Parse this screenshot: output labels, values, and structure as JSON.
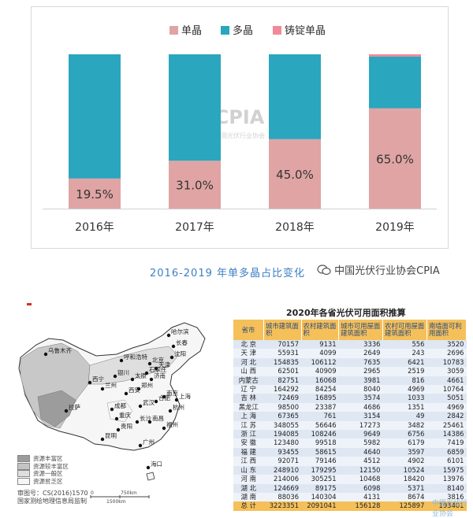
{
  "chart_data": {
    "type": "bar",
    "stacked": "percent",
    "categories": [
      "2016年",
      "2017年",
      "2018年",
      "2019年"
    ],
    "series": [
      {
        "name": "单晶",
        "color": "#e0a4a4",
        "values": [
          19.5,
          31.0,
          45.0,
          65.0
        ]
      },
      {
        "name": "多晶",
        "color": "#2aa6bf",
        "values": [
          80.5,
          69.0,
          55.0,
          33.5
        ]
      },
      {
        "name": "铸锭单晶",
        "color": "#f08a9a",
        "values": [
          0,
          0,
          0,
          1.5
        ]
      }
    ],
    "data_labels": [
      "19.5%",
      "31.0%",
      "45.0%",
      "65.0%"
    ],
    "ylim": [
      0,
      100
    ],
    "legend_position": "top",
    "grid": false,
    "watermark": {
      "brand": "CPIA",
      "subtitle": "中国光伏行业协会"
    }
  },
  "caption": "2016-2019 年单多晶占比变化",
  "org_label": "中国光伏行业协会CPIA",
  "map": {
    "cities": [
      {
        "name": "乌鲁木齐"
      },
      {
        "name": "哈尔滨"
      },
      {
        "name": "长春"
      },
      {
        "name": "沈阳"
      },
      {
        "name": "呼和浩特"
      },
      {
        "name": "北京"
      },
      {
        "name": "天津"
      },
      {
        "name": "石家庄"
      },
      {
        "name": "太原"
      },
      {
        "name": "西宁"
      },
      {
        "name": "兰州"
      },
      {
        "name": "银川"
      },
      {
        "name": "济南"
      },
      {
        "name": "郑州"
      },
      {
        "name": "西安"
      },
      {
        "name": "南京"
      },
      {
        "name": "上海"
      },
      {
        "name": "合肥"
      },
      {
        "name": "拉萨"
      },
      {
        "name": "成都"
      },
      {
        "name": "武汉"
      },
      {
        "name": "杭州"
      },
      {
        "name": "重庆"
      },
      {
        "name": "长沙"
      },
      {
        "name": "南昌"
      },
      {
        "name": "福州"
      },
      {
        "name": "贵阳"
      },
      {
        "name": "昆明"
      },
      {
        "name": "广州"
      },
      {
        "name": "海口"
      }
    ],
    "legend": [
      "资源丰富区",
      "资源较丰富区",
      "资源一般区",
      "资源贫乏区"
    ],
    "legend_colors": [
      "#9c9c9c",
      "#c4c4c4",
      "#dedede",
      "#f6f6f6"
    ],
    "footer_line1": "审图号：CS(2016)1570",
    "footer_line2": "国家测绘地理信息局监制",
    "scale_labels": [
      "0",
      "750km",
      "1500km"
    ]
  },
  "table": {
    "title": "2020年各省光伏可用面积推算",
    "headers": [
      "省市",
      "城市建筑面积",
      "农村建筑面积",
      "城市可用屋面建筑面积",
      "农村可用屋面建筑面积",
      "南墙面可利用面积"
    ],
    "rows": [
      [
        "北 京",
        "70157",
        "9131",
        "3336",
        "556",
        "3520"
      ],
      [
        "天 津",
        "55931",
        "4099",
        "2649",
        "243",
        "2696"
      ],
      [
        "河 北",
        "154835",
        "106112",
        "7635",
        "6421",
        "10783"
      ],
      [
        "山 西",
        "62501",
        "40909",
        "2965",
        "2519",
        "3059"
      ],
      [
        "内蒙古",
        "82751",
        "16068",
        "3981",
        "816",
        "4661"
      ],
      [
        "辽 宁",
        "164292",
        "84254",
        "8040",
        "4969",
        "10764"
      ],
      [
        "吉 林",
        "72469",
        "16895",
        "3574",
        "1033",
        "5051"
      ],
      [
        "黑龙江",
        "98500",
        "23387",
        "4686",
        "1351",
        "4969"
      ],
      [
        "上 海",
        "67365",
        "761",
        "3154",
        "49",
        "2842"
      ],
      [
        "江 苏",
        "348055",
        "56646",
        "17273",
        "3482",
        "25461"
      ],
      [
        "浙 江",
        "194085",
        "108246",
        "9649",
        "6756",
        "14386"
      ],
      [
        "安 徽",
        "123480",
        "99518",
        "5982",
        "6179",
        "7419"
      ],
      [
        "福 建",
        "93455",
        "58615",
        "4640",
        "3597",
        "6859"
      ],
      [
        "江 西",
        "92071",
        "79146",
        "4512",
        "4902",
        "6101"
      ],
      [
        "山 东",
        "248910",
        "179295",
        "12150",
        "10524",
        "15975"
      ],
      [
        "河 南",
        "214006",
        "305251",
        "10468",
        "18420",
        "13976"
      ],
      [
        "湖 北",
        "124669",
        "89175",
        "6098",
        "5371",
        "8140"
      ],
      [
        "湖 南",
        "88036",
        "140304",
        "4131",
        "8674",
        "3816"
      ],
      [
        "总 计",
        "3223351",
        "2091041",
        "156128",
        "125897",
        "193401"
      ]
    ]
  },
  "watermark_text": "中国光伏行业协会"
}
